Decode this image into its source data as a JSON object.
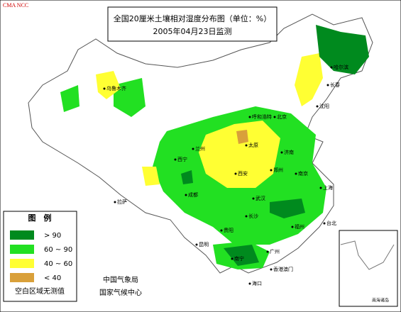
{
  "header": {
    "org": "CMA NCC",
    "title": "全国20厘米土壤相对湿度分布图（单位：%）",
    "date": "2005年04月23日监测"
  },
  "legend": {
    "title": "图　例",
    "items": [
      {
        "label": "> 90",
        "color": "#008a1e"
      },
      {
        "label": "60 ~ 90",
        "color": "#22e022"
      },
      {
        "label": "40 ~ 60",
        "color": "#ffff33"
      },
      {
        "label": "< 40",
        "color": "#d9a03a"
      }
    ],
    "note": "空白区域无测值"
  },
  "footer": {
    "agency": "中国气象局",
    "center": "国家气候中心"
  },
  "inset": {
    "label": "南海诸岛"
  },
  "cities": [
    "乌鲁木齐",
    "哈尔滨",
    "长春",
    "沈阳",
    "北京",
    "呼和浩特",
    "太原",
    "济南",
    "郑州",
    "西安",
    "兰州",
    "西宁",
    "拉萨",
    "成都",
    "武汉",
    "南京",
    "上海",
    "长沙",
    "贵阳",
    "昆明",
    "南宁",
    "广州",
    "福州",
    "台北",
    "海口",
    "香港澳门"
  ]
}
